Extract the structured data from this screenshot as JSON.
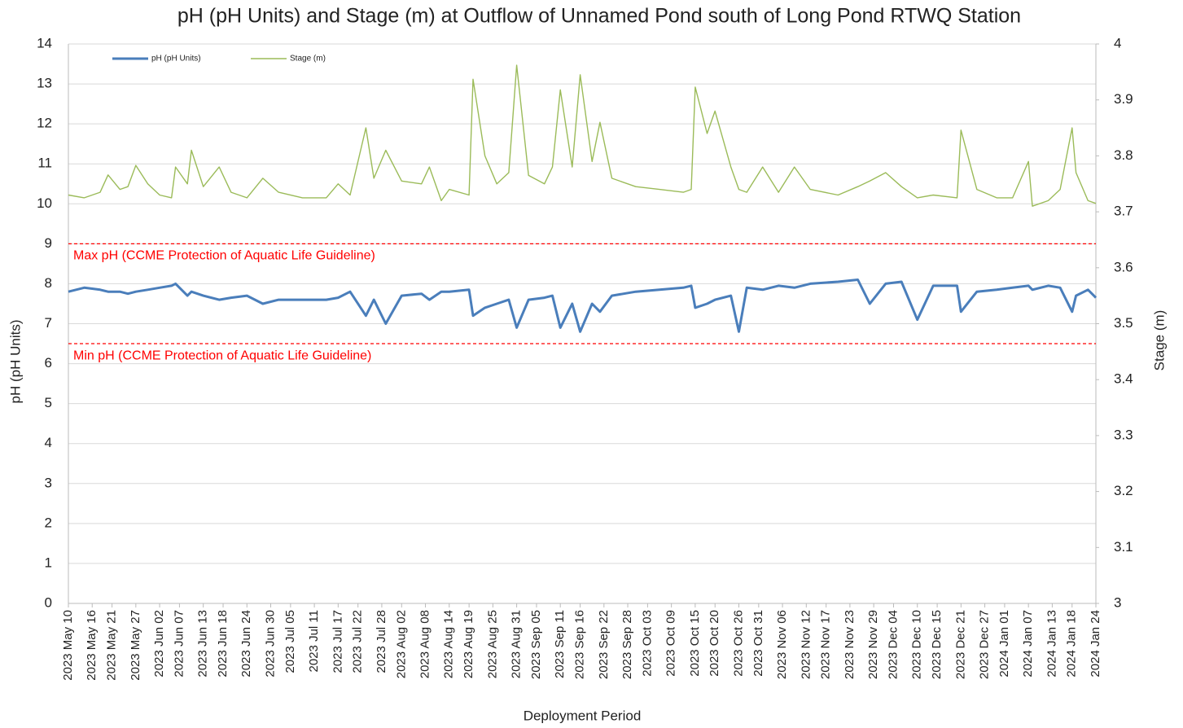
{
  "chart_data": {
    "type": "line",
    "title": "pH (pH Units) and Stage (m) at Outflow of Unnamed Pond south of Long Pond RTWQ Station",
    "xlabel": "Deployment Period",
    "ylabel": "pH (pH Units)",
    "y2label": "Stage (m)",
    "xlim": [
      "2023-05-10",
      "2024-01-24"
    ],
    "xticks": [
      {
        "value": "2023-05-10",
        "label": "2023 May 10"
      },
      {
        "value": "2023-05-16",
        "label": "2023 May 16"
      },
      {
        "value": "2023-05-21",
        "label": "2023 May 21"
      },
      {
        "value": "2023-05-27",
        "label": "2023 May 27"
      },
      {
        "value": "2023-06-02",
        "label": "2023 Jun 02"
      },
      {
        "value": "2023-06-07",
        "label": "2023 Jun 07"
      },
      {
        "value": "2023-06-13",
        "label": "2023 Jun 13"
      },
      {
        "value": "2023-06-18",
        "label": "2023 Jun 18"
      },
      {
        "value": "2023-06-24",
        "label": "2023 Jun 24"
      },
      {
        "value": "2023-06-30",
        "label": "2023 Jun 30"
      },
      {
        "value": "2023-07-05",
        "label": "2023 Jul 05"
      },
      {
        "value": "2023-07-11",
        "label": "2023 Jul 11"
      },
      {
        "value": "2023-07-17",
        "label": "2023 Jul 17"
      },
      {
        "value": "2023-07-22",
        "label": "2023 Jul 22"
      },
      {
        "value": "2023-07-28",
        "label": "2023 Jul 28"
      },
      {
        "value": "2023-08-02",
        "label": "2023 Aug 02"
      },
      {
        "value": "2023-08-08",
        "label": "2023 Aug 08"
      },
      {
        "value": "2023-08-14",
        "label": "2023 Aug 14"
      },
      {
        "value": "2023-08-19",
        "label": "2023 Aug 19"
      },
      {
        "value": "2023-08-25",
        "label": "2023 Aug 25"
      },
      {
        "value": "2023-08-31",
        "label": "2023 Aug 31"
      },
      {
        "value": "2023-09-05",
        "label": "2023 Sep 05"
      },
      {
        "value": "2023-09-11",
        "label": "2023 Sep 11"
      },
      {
        "value": "2023-09-16",
        "label": "2023 Sep 16"
      },
      {
        "value": "2023-09-22",
        "label": "2023 Sep 22"
      },
      {
        "value": "2023-09-28",
        "label": "2023 Sep 28"
      },
      {
        "value": "2023-10-03",
        "label": "2023 Oct 03"
      },
      {
        "value": "2023-10-09",
        "label": "2023 Oct 09"
      },
      {
        "value": "2023-10-15",
        "label": "2023 Oct 15"
      },
      {
        "value": "2023-10-20",
        "label": "2023 Oct 20"
      },
      {
        "value": "2023-10-26",
        "label": "2023 Oct 26"
      },
      {
        "value": "2023-10-31",
        "label": "2023 Oct 31"
      },
      {
        "value": "2023-11-06",
        "label": "2023 Nov 06"
      },
      {
        "value": "2023-11-12",
        "label": "2023 Nov 12"
      },
      {
        "value": "2023-11-17",
        "label": "2023 Nov 17"
      },
      {
        "value": "2023-11-23",
        "label": "2023 Nov 23"
      },
      {
        "value": "2023-11-29",
        "label": "2023 Nov 29"
      },
      {
        "value": "2023-12-04",
        "label": "2023 Dec 04"
      },
      {
        "value": "2023-12-10",
        "label": "2023 Dec 10"
      },
      {
        "value": "2023-12-15",
        "label": "2023 Dec 15"
      },
      {
        "value": "2023-12-21",
        "label": "2023 Dec 21"
      },
      {
        "value": "2023-12-27",
        "label": "2023 Dec 27"
      },
      {
        "value": "2024-01-01",
        "label": "2024 Jan 01"
      },
      {
        "value": "2024-01-07",
        "label": "2024 Jan 07"
      },
      {
        "value": "2024-01-13",
        "label": "2024 Jan 13"
      },
      {
        "value": "2024-01-18",
        "label": "2024 Jan 18"
      },
      {
        "value": "2024-01-24",
        "label": "2024 Jan 24"
      }
    ],
    "ylim": [
      0,
      14
    ],
    "yticks": [
      0,
      1,
      2,
      3,
      4,
      5,
      6,
      7,
      8,
      9,
      10,
      11,
      12,
      13,
      14
    ],
    "y2lim": [
      3,
      4
    ],
    "y2ticks": [
      3,
      3.1,
      3.2,
      3.3,
      3.4,
      3.5,
      3.6,
      3.7,
      3.8,
      3.9,
      4
    ],
    "grid": true,
    "legend": "top-left",
    "x": [
      "2023-05-10",
      "2023-05-14",
      "2023-05-18",
      "2023-05-20",
      "2023-05-23",
      "2023-05-25",
      "2023-05-27",
      "2023-05-30",
      "2023-06-02",
      "2023-06-05",
      "2023-06-06",
      "2023-06-09",
      "2023-06-10",
      "2023-06-13",
      "2023-06-17",
      "2023-06-20",
      "2023-06-24",
      "2023-06-28",
      "2023-07-02",
      "2023-07-08",
      "2023-07-14",
      "2023-07-17",
      "2023-07-20",
      "2023-07-24",
      "2023-07-26",
      "2023-07-29",
      "2023-08-02",
      "2023-08-07",
      "2023-08-09",
      "2023-08-12",
      "2023-08-14",
      "2023-08-19",
      "2023-08-20",
      "2023-08-23",
      "2023-08-26",
      "2023-08-29",
      "2023-08-31",
      "2023-09-03",
      "2023-09-07",
      "2023-09-09",
      "2023-09-11",
      "2023-09-14",
      "2023-09-16",
      "2023-09-19",
      "2023-09-21",
      "2023-09-24",
      "2023-09-30",
      "2023-10-06",
      "2023-10-12",
      "2023-10-14",
      "2023-10-15",
      "2023-10-18",
      "2023-10-20",
      "2023-10-24",
      "2023-10-26",
      "2023-10-28",
      "2023-11-01",
      "2023-11-05",
      "2023-11-09",
      "2023-11-13",
      "2023-11-20",
      "2023-11-25",
      "2023-11-28",
      "2023-12-02",
      "2023-12-06",
      "2023-12-10",
      "2023-12-14",
      "2023-12-20",
      "2023-12-21",
      "2023-12-25",
      "2023-12-30",
      "2024-01-03",
      "2024-01-07",
      "2024-01-08",
      "2024-01-12",
      "2024-01-15",
      "2024-01-18",
      "2024-01-19",
      "2024-01-22",
      "2024-01-24"
    ],
    "series": [
      {
        "name": "pH (pH Units)",
        "color": "#4a7ebb",
        "values": [
          7.8,
          7.9,
          7.85,
          7.8,
          7.8,
          7.75,
          7.8,
          7.85,
          7.9,
          7.95,
          8.0,
          7.7,
          7.8,
          7.7,
          7.6,
          7.65,
          7.7,
          7.5,
          7.6,
          7.6,
          7.6,
          7.65,
          7.8,
          7.2,
          7.6,
          7.0,
          7.7,
          7.75,
          7.6,
          7.8,
          7.8,
          7.85,
          7.2,
          7.4,
          7.5,
          7.6,
          6.9,
          7.6,
          7.65,
          7.7,
          6.9,
          7.5,
          6.8,
          7.5,
          7.3,
          7.7,
          7.8,
          7.85,
          7.9,
          7.95,
          7.4,
          7.5,
          7.6,
          7.7,
          6.8,
          7.9,
          7.85,
          7.95,
          7.9,
          8.0,
          8.05,
          8.1,
          7.5,
          8.0,
          8.05,
          7.1,
          7.95,
          7.95,
          7.3,
          7.8,
          7.85,
          7.9,
          7.95,
          7.85,
          7.95,
          7.9,
          7.3,
          7.7,
          7.85,
          7.65
        ]
      },
      {
        "name": "Stage (m)",
        "color": "#9bbb59",
        "axis": "y2",
        "values": [
          3.73,
          3.725,
          3.735,
          3.766,
          3.74,
          3.745,
          3.783,
          3.75,
          3.73,
          3.725,
          3.78,
          3.75,
          3.81,
          3.745,
          3.78,
          3.735,
          3.725,
          3.76,
          3.735,
          3.725,
          3.725,
          3.75,
          3.73,
          3.85,
          3.76,
          3.81,
          3.755,
          3.75,
          3.78,
          3.72,
          3.74,
          3.73,
          3.937,
          3.8,
          3.75,
          3.77,
          3.962,
          3.765,
          3.75,
          3.78,
          3.918,
          3.78,
          3.945,
          3.79,
          3.86,
          3.76,
          3.745,
          3.74,
          3.735,
          3.74,
          3.923,
          3.84,
          3.88,
          3.78,
          3.74,
          3.735,
          3.78,
          3.735,
          3.78,
          3.74,
          3.73,
          3.745,
          3.755,
          3.77,
          3.745,
          3.725,
          3.73,
          3.725,
          3.846,
          3.74,
          3.725,
          3.725,
          3.79,
          3.71,
          3.72,
          3.74,
          3.85,
          3.77,
          3.72,
          3.715
        ]
      }
    ],
    "reference_lines": [
      {
        "value": 9,
        "label": "Max pH (CCME Protection of Aquatic Life Guideline)",
        "color": "#ff0000"
      },
      {
        "value": 6.5,
        "label": "Min pH (CCME Protection of Aquatic Life Guideline)",
        "color": "#ff0000"
      }
    ]
  }
}
